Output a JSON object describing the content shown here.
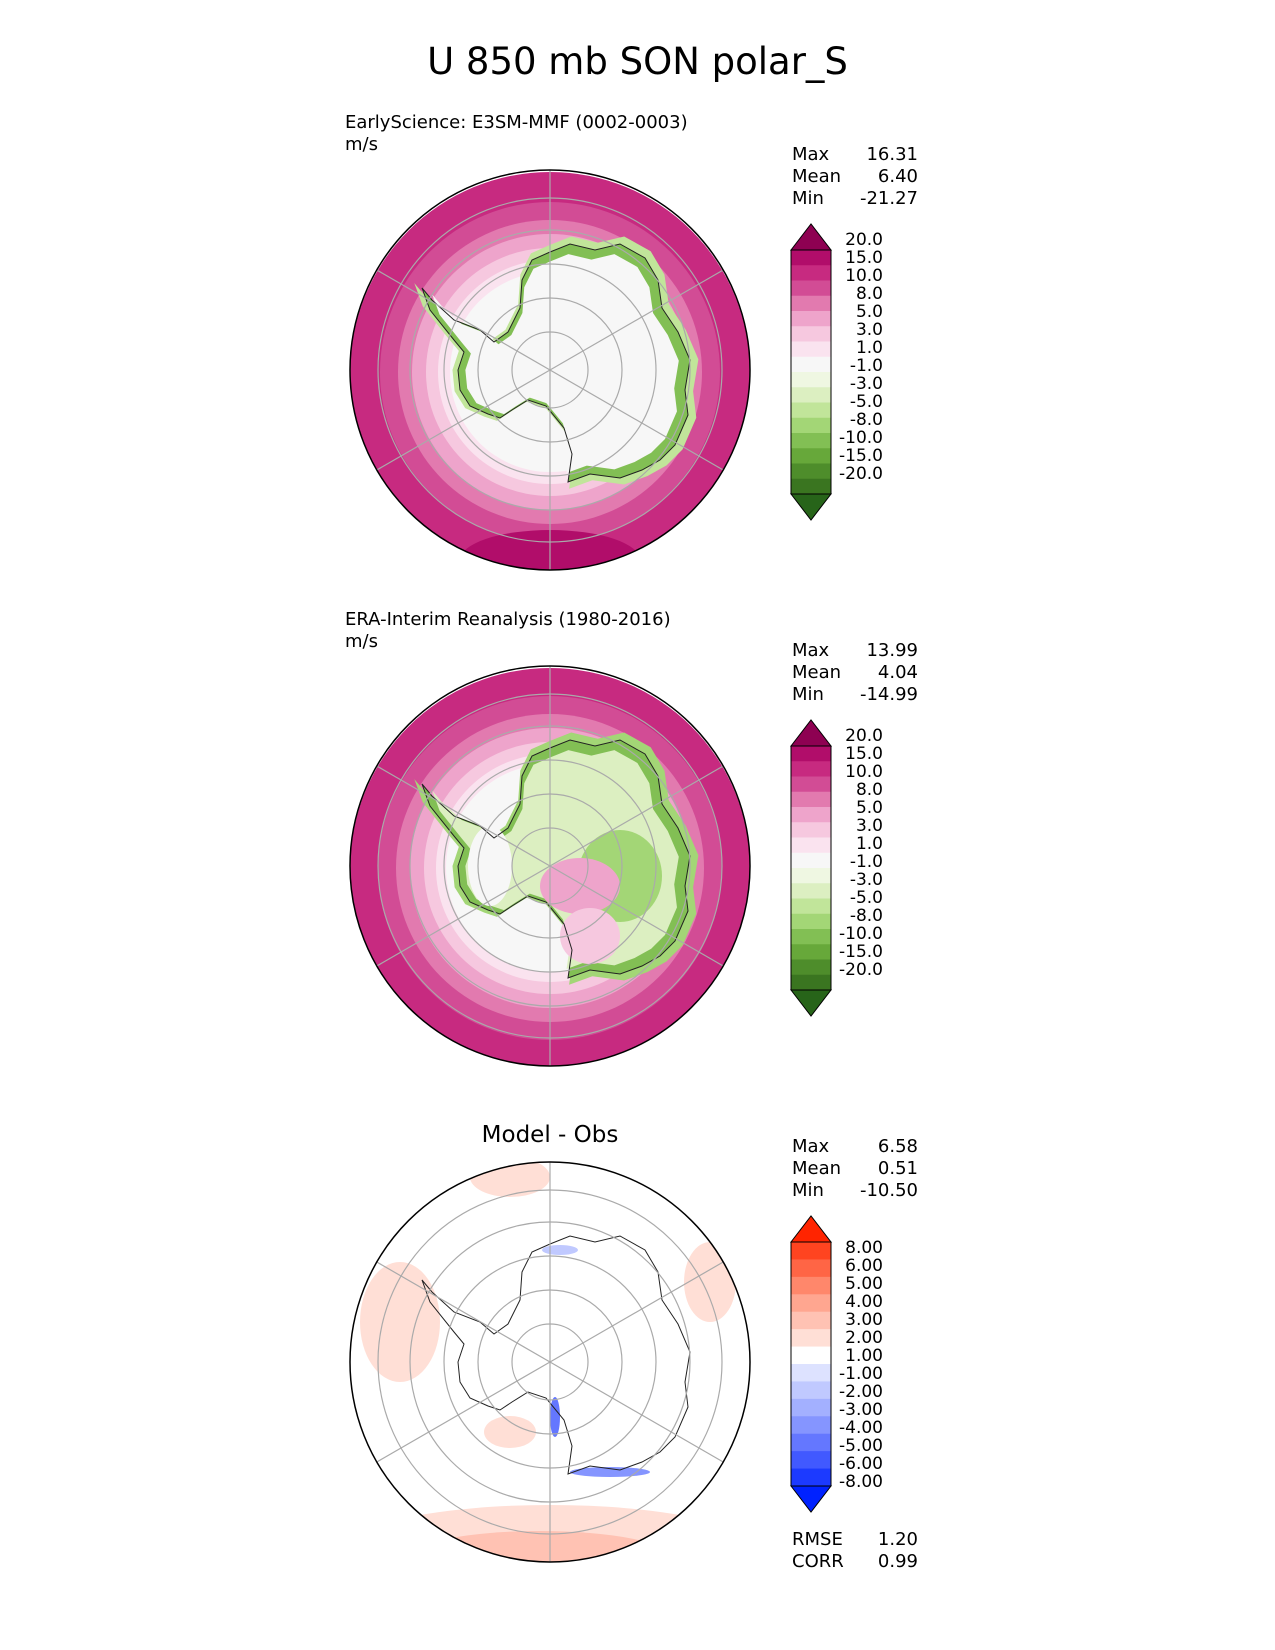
{
  "title": "U 850 mb SON polar_S",
  "chart_data": [
    {
      "type": "heatmap",
      "projection": "south-polar-stereographic",
      "title": "EarlyScience: E3SM-MMF (0002-0003)",
      "units": "m/s",
      "stats": [
        {
          "label": "Max",
          "value": "16.31"
        },
        {
          "label": "Mean",
          "value": "6.40"
        },
        {
          "label": "Min",
          "value": "-21.27"
        }
      ],
      "colorbar": {
        "ticks": [
          "20.0",
          "15.0",
          "10.0",
          "8.0",
          "5.0",
          "3.0",
          "1.0",
          "-1.0",
          "-3.0",
          "-5.0",
          "-8.0",
          "-10.0",
          "-15.0",
          "-20.0"
        ],
        "colors": [
          "#8e0152",
          "#b10d6a",
          "#c72a80",
          "#d24c95",
          "#e27aaf",
          "#eea4cb",
          "#f6c8df",
          "#fae3ef",
          "#f7f7f7",
          "#eff7e2",
          "#dcefc1",
          "#c1e59a",
          "#a3d676",
          "#82bf54",
          "#67a83a",
          "#4e8d2b",
          "#3a7520",
          "#276419"
        ],
        "extend": "both"
      }
    },
    {
      "type": "heatmap",
      "projection": "south-polar-stereographic",
      "title": "ERA-Interim Reanalysis (1980-2016)",
      "units": "m/s",
      "stats": [
        {
          "label": "Max",
          "value": "13.99"
        },
        {
          "label": "Mean",
          "value": "4.04"
        },
        {
          "label": "Min",
          "value": "-14.99"
        }
      ],
      "colorbar": {
        "ticks": [
          "20.0",
          "15.0",
          "10.0",
          "8.0",
          "5.0",
          "3.0",
          "1.0",
          "-1.0",
          "-3.0",
          "-5.0",
          "-8.0",
          "-10.0",
          "-15.0",
          "-20.0"
        ],
        "colors": [
          "#8e0152",
          "#b10d6a",
          "#c72a80",
          "#d24c95",
          "#e27aaf",
          "#eea4cb",
          "#f6c8df",
          "#fae3ef",
          "#f7f7f7",
          "#eff7e2",
          "#dcefc1",
          "#c1e59a",
          "#a3d676",
          "#82bf54",
          "#67a83a",
          "#4e8d2b",
          "#3a7520",
          "#276419"
        ],
        "extend": "both"
      }
    },
    {
      "type": "heatmap",
      "projection": "south-polar-stereographic",
      "title": "Model - Obs",
      "units": "",
      "stats": [
        {
          "label": "Max",
          "value": "6.58"
        },
        {
          "label": "Mean",
          "value": "0.51"
        },
        {
          "label": "Min",
          "value": "-10.50"
        }
      ],
      "metrics": [
        {
          "label": "RMSE",
          "value": "1.20"
        },
        {
          "label": "CORR",
          "value": "0.99"
        }
      ],
      "colorbar": {
        "ticks": [
          "8.00",
          "6.00",
          "5.00",
          "4.00",
          "3.00",
          "2.00",
          "1.00",
          "-1.00",
          "-2.00",
          "-3.00",
          "-4.00",
          "-5.00",
          "-6.00",
          "-8.00"
        ],
        "colors": [
          "#ff2400",
          "#ff4420",
          "#ff6545",
          "#ff876b",
          "#ffa690",
          "#ffc2b3",
          "#ffdfd6",
          "#ffffff",
          "#dde2ff",
          "#c0c9ff",
          "#a3b0ff",
          "#8595ff",
          "#6477ff",
          "#4159ff",
          "#1c3aff",
          "#0022ff"
        ],
        "extend": "both"
      }
    }
  ]
}
